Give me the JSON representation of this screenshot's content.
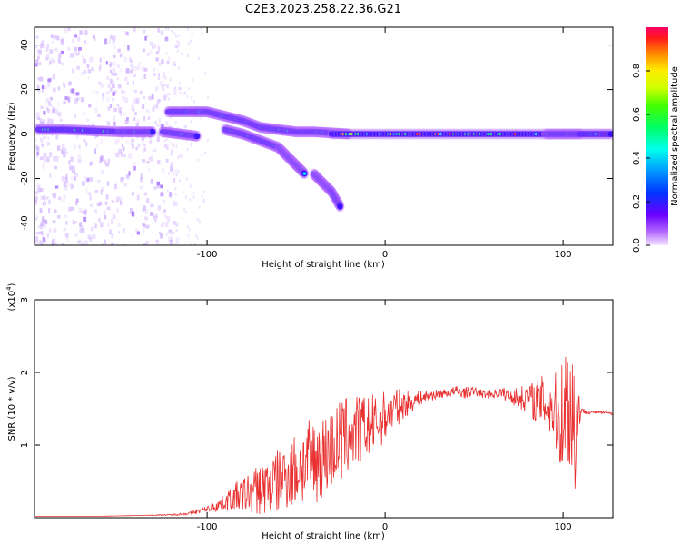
{
  "title": "C2E3.2023.258.22.36.G21",
  "chart_data": [
    {
      "type": "heatmap",
      "xlabel": "Height of straight line (km)",
      "ylabel": "Frequency (Hz)",
      "xlim": [
        -197,
        128
      ],
      "ylim": [
        -50,
        48
      ],
      "xticks": [
        -100,
        0,
        100
      ],
      "yticks": [
        -40,
        -20,
        0,
        20,
        40
      ],
      "colorbar": {
        "label": "Normalized spectral amplitude",
        "range": [
          0,
          1
        ],
        "ticks": [
          0.0,
          0.2,
          0.4,
          0.6,
          0.8
        ]
      },
      "traces": [
        {
          "x": [
            -195,
            -180,
            -165,
            -150,
            -140,
            -130
          ],
          "y": [
            2,
            2,
            1.5,
            1,
            1,
            1
          ]
        },
        {
          "x": [
            -122,
            -110,
            -100,
            -90,
            -80,
            -70,
            -60,
            -50,
            -40,
            -30,
            -20
          ],
          "y": [
            10,
            10,
            10,
            8,
            6,
            3,
            2,
            1,
            1,
            0.5,
            0
          ]
        },
        {
          "x": [
            -125,
            -115,
            -105
          ],
          "y": [
            1,
            0,
            -1
          ]
        },
        {
          "x": [
            -90,
            -80,
            -70,
            -60,
            -55,
            -50,
            -45
          ],
          "y": [
            2,
            0,
            -3,
            -6,
            -10,
            -14,
            -18
          ]
        },
        {
          "x": [
            -40,
            -35,
            -30,
            -25
          ],
          "y": [
            -18,
            -22,
            -26,
            -33
          ]
        },
        {
          "x": [
            -30,
            0,
            30,
            60,
            90,
            100,
            110,
            128
          ],
          "y": [
            0,
            0,
            0,
            0,
            0,
            0,
            0,
            0
          ]
        }
      ]
    },
    {
      "type": "line",
      "xlabel": "Height of straight line (km)",
      "ylabel": "SNR (10 * v/v)",
      "yunit": "(x10^4)",
      "xlim": [
        -197,
        128
      ],
      "ylim": [
        0,
        3
      ],
      "xticks": [
        -100,
        0,
        100
      ],
      "yticks": [
        1,
        2,
        3
      ],
      "color": "#e83030",
      "series": [
        {
          "x": [
            -197,
            -180,
            -160,
            -140,
            -120,
            -110,
            -100,
            -95,
            -90,
            -85,
            -80,
            -75,
            -70,
            -65,
            -60,
            -55,
            -50,
            -45,
            -40,
            -35,
            -30,
            -25,
            -20,
            -15,
            -10,
            -5,
            0,
            5,
            10,
            15,
            20,
            25,
            30,
            35,
            40,
            45,
            50,
            55,
            60,
            65,
            70,
            75,
            80,
            85,
            90,
            95,
            98,
            100,
            103,
            105,
            107,
            108,
            110,
            115,
            120,
            128
          ],
          "y": [
            0.02,
            0.02,
            0.02,
            0.03,
            0.04,
            0.06,
            0.12,
            0.16,
            0.22,
            0.28,
            0.32,
            0.35,
            0.4,
            0.45,
            0.5,
            0.6,
            0.65,
            0.72,
            0.78,
            0.85,
            0.95,
            1.05,
            1.15,
            1.2,
            1.25,
            1.3,
            1.4,
            1.5,
            1.55,
            1.6,
            1.65,
            1.68,
            1.7,
            1.72,
            1.74,
            1.72,
            1.74,
            1.7,
            1.7,
            1.72,
            1.68,
            1.65,
            1.65,
            1.6,
            1.6,
            1.5,
            1.3,
            1.5,
            1.6,
            1.5,
            1.2,
            1.5,
            1.47,
            1.45,
            1.45,
            1.43
          ],
          "noise": [
            0,
            0,
            0,
            0,
            0.01,
            0.02,
            0.04,
            0.08,
            0.12,
            0.18,
            0.25,
            0.3,
            0.38,
            0.42,
            0.45,
            0.48,
            0.55,
            0.6,
            0.6,
            0.58,
            0.58,
            0.6,
            0.55,
            0.5,
            0.45,
            0.4,
            0.35,
            0.3,
            0.2,
            0.15,
            0.1,
            0.08,
            0.06,
            0.06,
            0.08,
            0.08,
            0.06,
            0.06,
            0.06,
            0.08,
            0.1,
            0.15,
            0.2,
            0.3,
            0.4,
            0.55,
            0.6,
            0.9,
            1.0,
            1.1,
            1.2,
            0.6,
            0.05,
            0.02,
            0.02,
            0.02
          ]
        }
      ]
    }
  ]
}
